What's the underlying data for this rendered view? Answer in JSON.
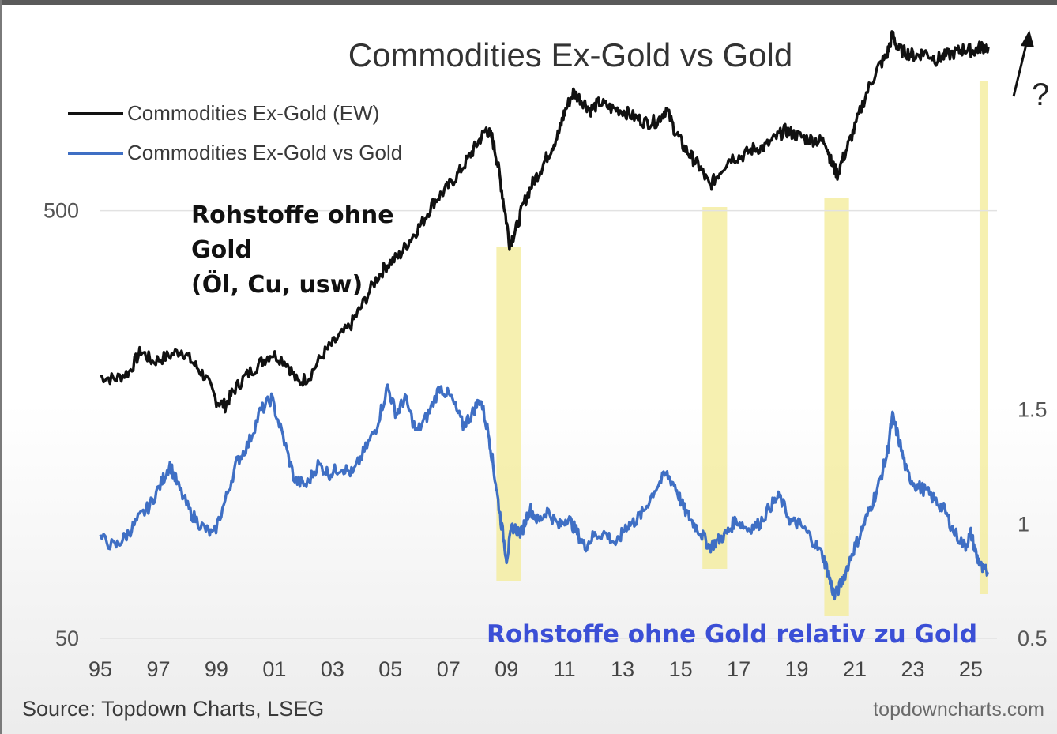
{
  "chart_data": {
    "type": "line",
    "title": "Commodities Ex-Gold vs Gold",
    "legend": {
      "placement": "top-left",
      "entries": [
        {
          "name": "Commodities Ex-Gold (EW)",
          "color": "#111111"
        },
        {
          "name": "Commodities Ex-Gold vs Gold",
          "color": "#3f6fc4"
        }
      ]
    },
    "left_axis": {
      "scale": "log",
      "range": [
        50,
        1300
      ],
      "ticks": [
        {
          "value": 50,
          "label": "50"
        },
        {
          "value": 500,
          "label": "500"
        }
      ]
    },
    "right_axis": {
      "scale": "linear",
      "range": [
        0.5,
        2.3
      ],
      "ticks": [
        {
          "value": 0.5,
          "label": "0.5"
        },
        {
          "value": 1,
          "label": "1"
        },
        {
          "value": 1.5,
          "label": "1.5"
        }
      ]
    },
    "x_axis": {
      "range": [
        1995,
        2025.9
      ],
      "ticks": [
        {
          "value": 1995,
          "label": "95"
        },
        {
          "value": 1997,
          "label": "97"
        },
        {
          "value": 1999,
          "label": "99"
        },
        {
          "value": 2001,
          "label": "01"
        },
        {
          "value": 2003,
          "label": "03"
        },
        {
          "value": 2005,
          "label": "05"
        },
        {
          "value": 2007,
          "label": "07"
        },
        {
          "value": 2009,
          "label": "09"
        },
        {
          "value": 2011,
          "label": "11"
        },
        {
          "value": 2013,
          "label": "13"
        },
        {
          "value": 2015,
          "label": "15"
        },
        {
          "value": 2017,
          "label": "17"
        },
        {
          "value": 2019,
          "label": "19"
        },
        {
          "value": 2021,
          "label": "21"
        },
        {
          "value": 2023,
          "label": "23"
        },
        {
          "value": 2025,
          "label": "25"
        }
      ]
    },
    "grid": {
      "horizontal": true,
      "vertical": false
    },
    "highlights": [
      {
        "start": 2008.65,
        "end": 2009.5
      },
      {
        "start": 2015.75,
        "end": 2016.6
      },
      {
        "start": 2019.95,
        "end": 2020.8
      },
      {
        "start": 2025.3,
        "end": 2025.6
      }
    ],
    "highlight_color": "#f3ec9a",
    "series": [
      {
        "name": "Commodities Ex-Gold (EW)",
        "axis": "left",
        "color": "#111111",
        "points": [
          [
            1995.0,
            205
          ],
          [
            1995.5,
            202
          ],
          [
            1996.0,
            210
          ],
          [
            1996.4,
            235
          ],
          [
            1996.8,
            222
          ],
          [
            1997.3,
            228
          ],
          [
            1997.8,
            236
          ],
          [
            1998.2,
            220
          ],
          [
            1998.6,
            205
          ],
          [
            1999.0,
            180
          ],
          [
            1999.3,
            175
          ],
          [
            1999.6,
            190
          ],
          [
            2000.0,
            205
          ],
          [
            2000.5,
            220
          ],
          [
            2000.9,
            232
          ],
          [
            2001.4,
            222
          ],
          [
            2001.8,
            198
          ],
          [
            2002.2,
            205
          ],
          [
            2002.7,
            232
          ],
          [
            2003.1,
            248
          ],
          [
            2003.6,
            268
          ],
          [
            2004.0,
            298
          ],
          [
            2004.5,
            345
          ],
          [
            2004.9,
            375
          ],
          [
            2005.3,
            392
          ],
          [
            2005.7,
            430
          ],
          [
            2006.1,
            470
          ],
          [
            2006.5,
            525
          ],
          [
            2006.9,
            560
          ],
          [
            2007.3,
            605
          ],
          [
            2007.7,
            665
          ],
          [
            2008.0,
            720
          ],
          [
            2008.3,
            775
          ],
          [
            2008.5,
            740
          ],
          [
            2008.7,
            640
          ],
          [
            2008.9,
            520
          ],
          [
            2009.1,
            420
          ],
          [
            2009.3,
            445
          ],
          [
            2009.6,
            520
          ],
          [
            2009.9,
            580
          ],
          [
            2010.2,
            630
          ],
          [
            2010.5,
            690
          ],
          [
            2010.8,
            760
          ],
          [
            2011.0,
            850
          ],
          [
            2011.3,
            945
          ],
          [
            2011.6,
            905
          ],
          [
            2011.9,
            860
          ],
          [
            2012.2,
            895
          ],
          [
            2012.6,
            868
          ],
          [
            2013.0,
            858
          ],
          [
            2013.4,
            828
          ],
          [
            2013.8,
            805
          ],
          [
            2014.2,
            810
          ],
          [
            2014.5,
            865
          ],
          [
            2014.8,
            770
          ],
          [
            2015.1,
            705
          ],
          [
            2015.4,
            665
          ],
          [
            2015.7,
            625
          ],
          [
            2016.0,
            570
          ],
          [
            2016.3,
            610
          ],
          [
            2016.7,
            665
          ],
          [
            2017.1,
            670
          ],
          [
            2017.5,
            698
          ],
          [
            2017.9,
            705
          ],
          [
            2018.3,
            742
          ],
          [
            2018.6,
            770
          ],
          [
            2018.9,
            755
          ],
          [
            2019.3,
            738
          ],
          [
            2019.7,
            730
          ],
          [
            2020.0,
            725
          ],
          [
            2020.2,
            645
          ],
          [
            2020.4,
            610
          ],
          [
            2020.7,
            690
          ],
          [
            2021.0,
            780
          ],
          [
            2021.4,
            940
          ],
          [
            2021.8,
            1080
          ],
          [
            2022.1,
            1150
          ],
          [
            2022.3,
            1290
          ],
          [
            2022.5,
            1190
          ],
          [
            2022.8,
            1170
          ],
          [
            2023.1,
            1150
          ],
          [
            2023.4,
            1175
          ],
          [
            2023.8,
            1130
          ],
          [
            2024.1,
            1150
          ],
          [
            2024.5,
            1175
          ],
          [
            2024.8,
            1195
          ],
          [
            2025.1,
            1180
          ],
          [
            2025.35,
            1210
          ],
          [
            2025.6,
            1205
          ]
        ]
      },
      {
        "name": "Commodities Ex-Gold vs Gold",
        "axis": "right",
        "color": "#3f6fc4",
        "points": [
          [
            1995.0,
            0.94
          ],
          [
            1995.5,
            0.9
          ],
          [
            1995.9,
            0.95
          ],
          [
            1996.3,
            1.02
          ],
          [
            1996.7,
            1.08
          ],
          [
            1997.1,
            1.18
          ],
          [
            1997.4,
            1.26
          ],
          [
            1997.7,
            1.16
          ],
          [
            1998.1,
            1.05
          ],
          [
            1998.5,
            0.99
          ],
          [
            1998.9,
            0.95
          ],
          [
            1999.3,
            1.1
          ],
          [
            1999.7,
            1.27
          ],
          [
            2000.1,
            1.35
          ],
          [
            2000.5,
            1.49
          ],
          [
            2000.9,
            1.55
          ],
          [
            2001.3,
            1.38
          ],
          [
            2001.7,
            1.19
          ],
          [
            2002.1,
            1.17
          ],
          [
            2002.5,
            1.26
          ],
          [
            2002.9,
            1.22
          ],
          [
            2003.3,
            1.25
          ],
          [
            2003.7,
            1.22
          ],
          [
            2004.1,
            1.32
          ],
          [
            2004.5,
            1.42
          ],
          [
            2004.9,
            1.6
          ],
          [
            2005.2,
            1.48
          ],
          [
            2005.5,
            1.55
          ],
          [
            2005.9,
            1.4
          ],
          [
            2006.3,
            1.48
          ],
          [
            2006.7,
            1.6
          ],
          [
            2007.1,
            1.55
          ],
          [
            2007.5,
            1.43
          ],
          [
            2007.8,
            1.48
          ],
          [
            2008.1,
            1.55
          ],
          [
            2008.4,
            1.38
          ],
          [
            2008.6,
            1.2
          ],
          [
            2008.8,
            1.02
          ],
          [
            2009.0,
            0.85
          ],
          [
            2009.2,
            0.99
          ],
          [
            2009.5,
            0.96
          ],
          [
            2009.8,
            1.07
          ],
          [
            2010.1,
            1.01
          ],
          [
            2010.4,
            1.06
          ],
          [
            2010.8,
            0.99
          ],
          [
            2011.1,
            1.03
          ],
          [
            2011.4,
            0.97
          ],
          [
            2011.7,
            0.9
          ],
          [
            2012.0,
            0.95
          ],
          [
            2012.4,
            0.96
          ],
          [
            2012.8,
            0.91
          ],
          [
            2013.1,
            0.99
          ],
          [
            2013.4,
            1.01
          ],
          [
            2013.7,
            1.05
          ],
          [
            2014.1,
            1.15
          ],
          [
            2014.5,
            1.22
          ],
          [
            2014.8,
            1.17
          ],
          [
            2015.1,
            1.07
          ],
          [
            2015.4,
            1.01
          ],
          [
            2015.7,
            0.96
          ],
          [
            2016.0,
            0.9
          ],
          [
            2016.3,
            0.93
          ],
          [
            2016.6,
            0.96
          ],
          [
            2016.9,
            1.02
          ],
          [
            2017.3,
            0.98
          ],
          [
            2017.7,
            1.0
          ],
          [
            2018.1,
            1.08
          ],
          [
            2018.4,
            1.12
          ],
          [
            2018.8,
            1.01
          ],
          [
            2019.1,
            1.0
          ],
          [
            2019.5,
            0.94
          ],
          [
            2019.9,
            0.86
          ],
          [
            2020.1,
            0.78
          ],
          [
            2020.3,
            0.68
          ],
          [
            2020.6,
            0.76
          ],
          [
            2020.9,
            0.87
          ],
          [
            2021.2,
            0.96
          ],
          [
            2021.5,
            1.06
          ],
          [
            2021.8,
            1.16
          ],
          [
            2022.1,
            1.3
          ],
          [
            2022.3,
            1.47
          ],
          [
            2022.5,
            1.38
          ],
          [
            2022.8,
            1.22
          ],
          [
            2023.1,
            1.17
          ],
          [
            2023.4,
            1.15
          ],
          [
            2023.8,
            1.1
          ],
          [
            2024.1,
            1.06
          ],
          [
            2024.4,
            0.97
          ],
          [
            2024.8,
            0.9
          ],
          [
            2025.0,
            0.96
          ],
          [
            2025.2,
            0.86
          ],
          [
            2025.4,
            0.8
          ],
          [
            2025.6,
            0.79
          ]
        ]
      }
    ],
    "annotations": {
      "left_label": [
        "Rohstoffe ohne",
        "Gold",
        "(Öl, Cu, usw)"
      ],
      "bottom_label": "Rohstoffe ohne Gold relativ zu Gold",
      "bottom_label_color": "#3b4fd6",
      "question_mark": "?"
    }
  },
  "footer": {
    "source": "Source: Topdown Charts, LSEG",
    "website": "topdowncharts.com"
  }
}
